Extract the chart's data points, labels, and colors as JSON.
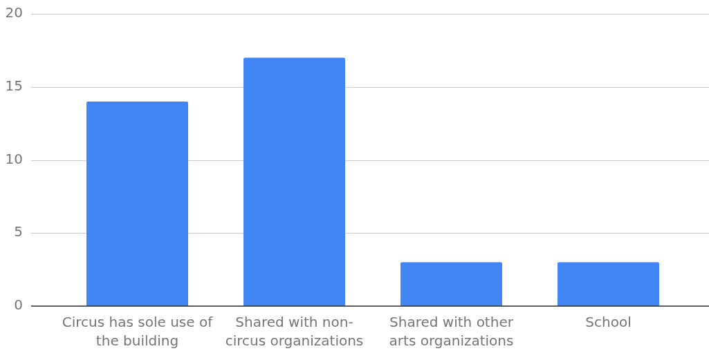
{
  "chart_data": {
    "type": "bar",
    "categories": [
      "Circus has sole use of the building",
      "Shared with non-circus organizations",
      "Shared with other arts organizations",
      "School"
    ],
    "values": [
      14,
      17,
      3,
      3
    ],
    "color": "#4285f4",
    "ylim": [
      0,
      20
    ],
    "yticks": [
      0,
      5,
      10,
      15,
      20
    ],
    "grid": "y",
    "legend": false
  }
}
